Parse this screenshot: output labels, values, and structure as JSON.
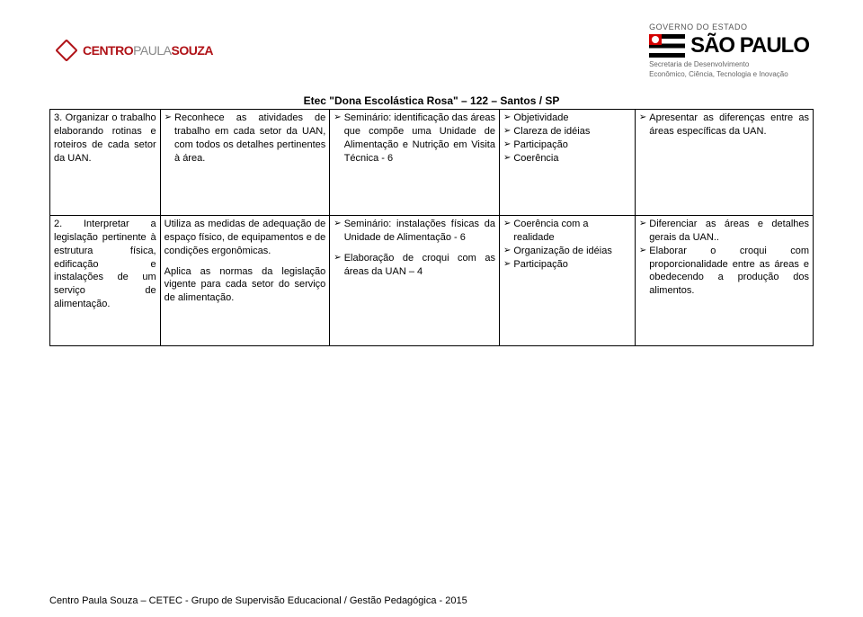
{
  "header": {
    "cps_brand_left": "CENTRO",
    "cps_brand_mid": "PAULA",
    "cps_brand_right": "SOUZA",
    "sp_gov_label": "GOVERNO DO ESTADO",
    "sp_name": "SÃO PAULO",
    "sp_sub1": "Secretaria de Desenvolvimento",
    "sp_sub2": "Econômico, Ciência, Tecnologia e Inovação"
  },
  "title": "Etec \"Dona Escolástica Rosa\" – 122 – Santos / SP",
  "row1": {
    "c1": "3. Organizar o trabalho elaborando rotinas e roteiros de cada setor da UAN.",
    "c2": "Reconhece as atividades de trabalho em cada setor da UAN, com todos os detalhes pertinentes à área.",
    "c3": "Seminário: identificação das áreas que compõe uma Unidade de Alimentação e Nutrição em Visita Técnica - 6",
    "c4_items": [
      "Objetividade",
      "Clareza de idéias",
      "Participação",
      "Coerência"
    ],
    "c5": "Apresentar as diferenças entre as áreas específicas da UAN."
  },
  "row2": {
    "c1": "2. Interpretar a legislação pertinente à estrutura física, edificação e instalações de um serviço de alimentação.",
    "c2_p1": "Utiliza as medidas de adequação de espaço físico, de equipamentos e de condições ergonômicas.",
    "c2_p2": "Aplica as normas da legislação vigente para cada setor do serviço de alimentação.",
    "c3_b1": "Seminário: instalações físicas da Unidade de Alimentação - 6",
    "c3_b2": "Elaboração de croqui com as áreas da UAN – 4",
    "c4_items": [
      "Coerência com a realidade",
      "Organização de idéias",
      "Participação"
    ],
    "c5_b1": "Diferenciar as áreas e detalhes gerais da UAN..",
    "c5_b2": "Elaborar o croqui com proporcionalidade entre as áreas e obedecendo a produção dos alimentos."
  },
  "footer": "Centro Paula Souza – CETEC - Grupo de Supervisão Educacional / Gestão Pedagógica - 2015"
}
